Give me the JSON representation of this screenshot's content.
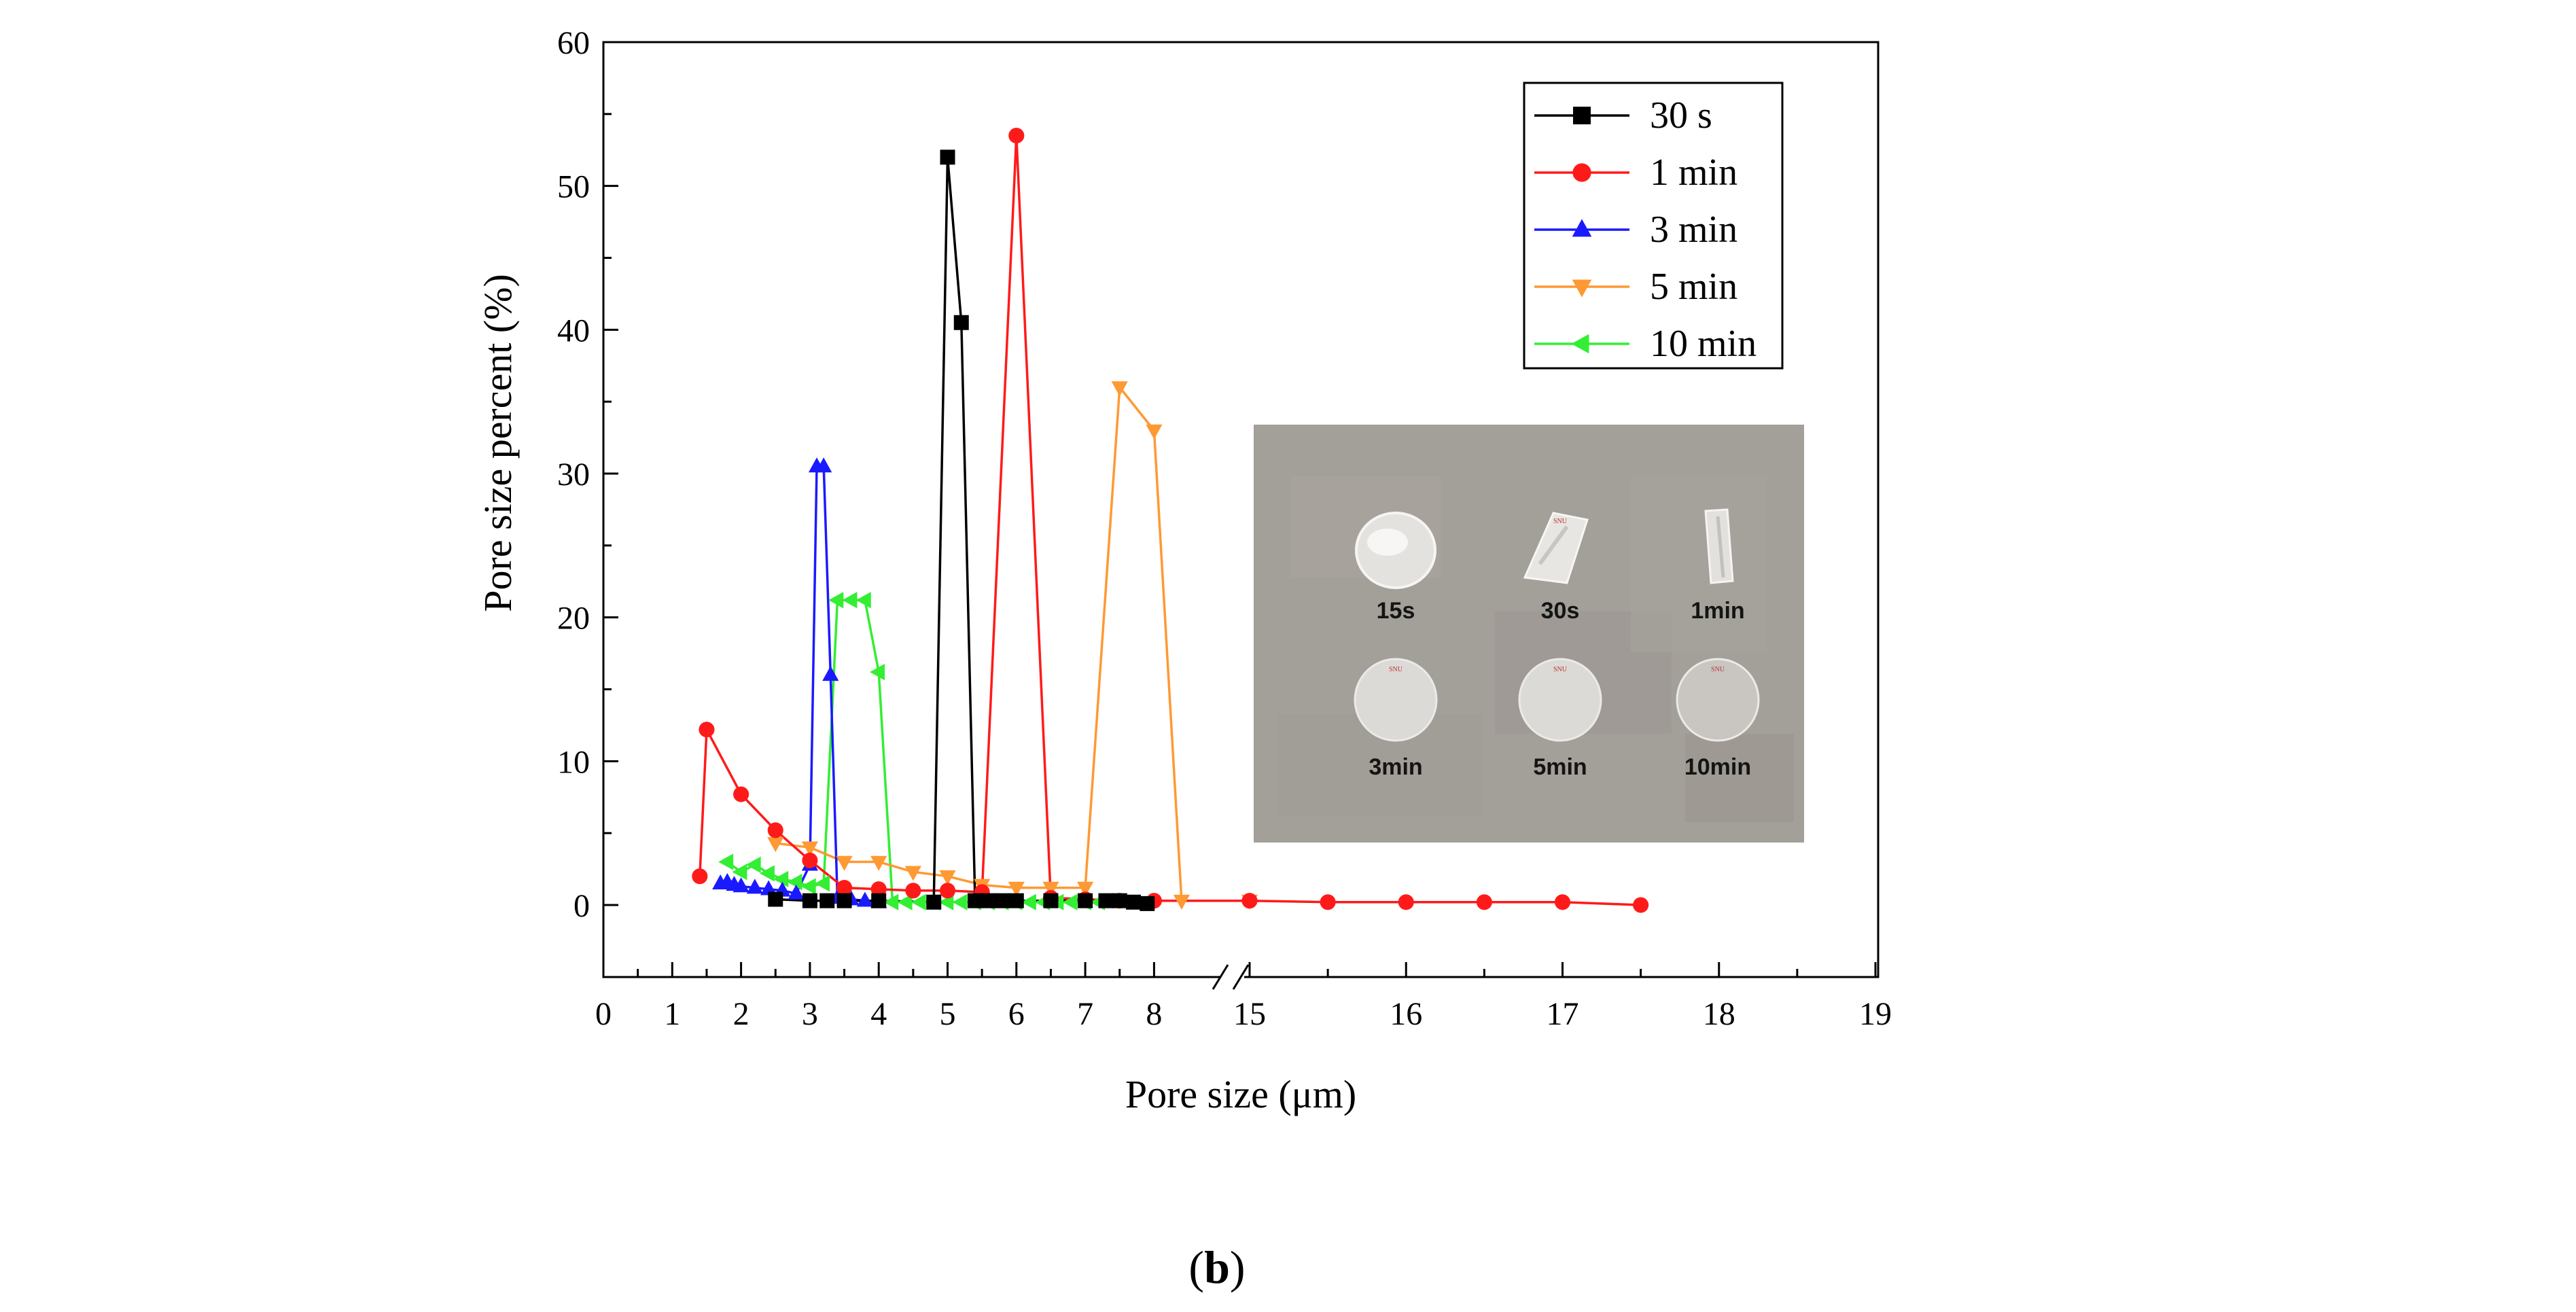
{
  "figure_label": {
    "text": "b",
    "open": "(",
    "close": ")"
  },
  "colors": {
    "s30": "#000000",
    "m1": "#ff1a1a",
    "m3": "#1a1aff",
    "m5": "#ff9933",
    "m10": "#33ee33",
    "photo_bg": "#a39f99",
    "photo_text": "#141414"
  },
  "chart_data": {
    "type": "line",
    "title": "",
    "xlabel": "Pore size (μm)",
    "ylabel": "Pore size percent (%)",
    "xlim": [
      0,
      19
    ],
    "ylim": [
      -5,
      60
    ],
    "x_break": {
      "from": 8.55,
      "to": 15,
      "segment_a": [
        0,
        8.55
      ],
      "segment_b": [
        14.75,
        19
      ]
    },
    "xticks": [
      "0",
      "1",
      "2",
      "3",
      "4",
      "5",
      "6",
      "7",
      "8",
      "15",
      "16",
      "17",
      "18",
      "19"
    ],
    "yticks": [
      "0",
      "10",
      "20",
      "30",
      "40",
      "50",
      "60"
    ],
    "legend_position": "top-right",
    "series": [
      {
        "name": "30 s",
        "marker": "square",
        "color_key": "s30",
        "x": [
          2.5,
          3.0,
          3.25,
          3.5,
          4.0,
          4.8,
          5.0,
          5.2,
          5.4,
          5.6,
          5.8,
          6.0,
          6.5,
          7.0,
          7.3,
          7.5,
          7.7,
          7.9
        ],
        "y": [
          0.4,
          0.3,
          0.3,
          0.3,
          0.3,
          0.2,
          52.0,
          40.5,
          0.3,
          0.3,
          0.3,
          0.3,
          0.3,
          0.3,
          0.3,
          0.3,
          0.2,
          0.1
        ]
      },
      {
        "name": "1 min",
        "marker": "circle",
        "color_key": "m1",
        "x": [
          1.4,
          1.5,
          2.0,
          2.5,
          3.0,
          3.5,
          4.0,
          4.5,
          5.0,
          5.5,
          6.0,
          6.5,
          7.0,
          7.5,
          8.0,
          15.0,
          15.5,
          16.0,
          16.5,
          17.0,
          17.5
        ],
        "y": [
          2.0,
          12.2,
          7.7,
          5.2,
          3.1,
          1.2,
          1.1,
          1.0,
          1.0,
          0.9,
          53.5,
          0.5,
          0.4,
          0.3,
          0.3,
          0.3,
          0.2,
          0.2,
          0.2,
          0.2,
          0.0
        ]
      },
      {
        "name": "3 min",
        "marker": "triangle-up",
        "color_key": "m3",
        "x": [
          1.7,
          1.8,
          1.9,
          2.0,
          2.2,
          2.4,
          2.6,
          2.8,
          3.0,
          3.1,
          3.2,
          3.3,
          3.4,
          3.6,
          3.8,
          4.0
        ],
        "y": [
          1.5,
          1.6,
          1.4,
          1.3,
          1.2,
          1.1,
          1.0,
          0.8,
          2.8,
          30.5,
          30.5,
          16.0,
          0.5,
          0.4,
          0.3,
          0.2
        ]
      },
      {
        "name": "5 min",
        "marker": "triangle-down",
        "color_key": "m5",
        "x": [
          2.5,
          3.0,
          3.5,
          4.0,
          4.5,
          5.0,
          5.5,
          6.0,
          6.5,
          7.0,
          7.5,
          8.0,
          8.4,
          15.0
        ],
        "y": [
          4.3,
          4.0,
          3.0,
          3.0,
          2.3,
          2.0,
          1.4,
          1.2,
          1.2,
          1.2,
          36.0,
          33.0,
          0.3,
          0.3
        ]
      },
      {
        "name": "10 min",
        "marker": "triangle-left",
        "color_key": "m10",
        "x": [
          1.8,
          2.0,
          2.2,
          2.4,
          2.6,
          2.8,
          3.0,
          3.2,
          3.4,
          3.6,
          3.8,
          4.0,
          4.2,
          4.4,
          4.6,
          4.8,
          5.0,
          5.2,
          5.4,
          5.6,
          5.8,
          6.0,
          6.2,
          6.4,
          6.6,
          6.8,
          7.0,
          7.2
        ],
        "y": [
          3.0,
          2.3,
          2.8,
          2.2,
          1.8,
          1.6,
          1.3,
          1.5,
          21.2,
          21.2,
          21.2,
          16.2,
          0.2,
          0.2,
          0.2,
          0.2,
          0.2,
          0.2,
          0.2,
          0.2,
          0.2,
          0.2,
          0.2,
          0.2,
          0.2,
          0.2,
          0.2,
          0.2
        ]
      }
    ]
  },
  "inset": {
    "labels": [
      "15s",
      "30s",
      "1min",
      "3min",
      "5min",
      "10min"
    ],
    "stamp": "SNU"
  }
}
